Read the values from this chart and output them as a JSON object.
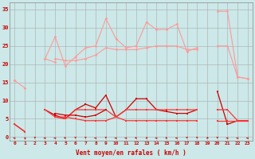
{
  "xlabel": "Vent moyen/en rafales ( km/h )",
  "background_color": "#cce8e8",
  "grid_color": "#aaaaaa",
  "x": [
    0,
    1,
    2,
    3,
    4,
    5,
    6,
    7,
    8,
    9,
    10,
    11,
    12,
    13,
    14,
    15,
    16,
    17,
    18,
    19,
    20,
    21,
    22,
    23
  ],
  "series": [
    {
      "color": "#ff9999",
      "lw": 0.8,
      "marker": "D",
      "ms": 1.8,
      "data": [
        15.5,
        13.5,
        null,
        21.5,
        27.5,
        19.5,
        22.0,
        24.5,
        25.0,
        32.5,
        27.0,
        24.5,
        25.0,
        31.5,
        29.5,
        29.5,
        31.0,
        23.5,
        24.5,
        null,
        34.5,
        34.5,
        16.5,
        16.0
      ]
    },
    {
      "color": "#ff9999",
      "lw": 0.8,
      "marker": "D",
      "ms": 1.8,
      "data": [
        15.5,
        null,
        null,
        null,
        21.5,
        21.0,
        21.0,
        21.5,
        22.5,
        24.5,
        24.0,
        24.0,
        24.0,
        24.5,
        25.0,
        25.0,
        25.0,
        24.0,
        24.0,
        null,
        25.0,
        25.0,
        16.5,
        16.0
      ]
    },
    {
      "color": "#ff9999",
      "lw": 0.8,
      "marker": "D",
      "ms": 1.8,
      "data": [
        null,
        null,
        null,
        21.5,
        20.5,
        null,
        null,
        null,
        null,
        null,
        null,
        null,
        null,
        null,
        null,
        null,
        null,
        null,
        null,
        null,
        null,
        null,
        null,
        null
      ]
    },
    {
      "color": "#cc0000",
      "lw": 0.9,
      "marker": "s",
      "ms": 1.8,
      "data": [
        3.5,
        1.5,
        null,
        7.5,
        6.0,
        5.0,
        7.5,
        9.0,
        8.0,
        11.5,
        5.5,
        7.5,
        10.5,
        10.5,
        7.5,
        7.0,
        6.5,
        6.5,
        7.5,
        null,
        12.5,
        3.5,
        4.5,
        4.5
      ]
    },
    {
      "color": "#ff3333",
      "lw": 0.9,
      "marker": "s",
      "ms": 1.8,
      "data": [
        3.5,
        1.5,
        null,
        7.5,
        5.5,
        5.0,
        7.5,
        7.5,
        7.5,
        7.5,
        5.5,
        7.5,
        7.5,
        7.5,
        7.5,
        7.5,
        7.5,
        7.5,
        7.5,
        null,
        7.5,
        7.5,
        4.5,
        4.5
      ]
    },
    {
      "color": "#ff3333",
      "lw": 0.9,
      "marker": "s",
      "ms": 1.8,
      "data": [
        null,
        null,
        null,
        null,
        5.5,
        5.5,
        5.0,
        4.5,
        4.5,
        4.5,
        5.5,
        4.5,
        4.5,
        4.5,
        4.5,
        4.5,
        4.5,
        4.5,
        4.5,
        null,
        4.5,
        4.5,
        4.5,
        4.5
      ]
    },
    {
      "color": "#cc0000",
      "lw": 0.9,
      "marker": "s",
      "ms": 1.8,
      "data": [
        null,
        null,
        null,
        null,
        6.5,
        6.0,
        6.0,
        5.5,
        6.0,
        7.5,
        null,
        null,
        null,
        null,
        null,
        null,
        null,
        null,
        null,
        null,
        null,
        null,
        null,
        null
      ]
    }
  ],
  "arrow_angles": [
    270,
    225,
    0,
    270,
    270,
    45,
    0,
    0,
    270,
    0,
    270,
    270,
    45,
    315,
    270,
    45,
    270,
    0,
    0,
    315,
    0,
    270,
    270,
    270
  ],
  "ylim": [
    -1,
    37
  ],
  "yticks": [
    0,
    5,
    10,
    15,
    20,
    25,
    30,
    35
  ],
  "xlim": [
    -0.5,
    23.5
  ],
  "xticks": [
    0,
    1,
    2,
    3,
    4,
    5,
    6,
    7,
    8,
    9,
    10,
    11,
    12,
    13,
    14,
    15,
    16,
    17,
    18,
    19,
    20,
    21,
    22,
    23
  ]
}
